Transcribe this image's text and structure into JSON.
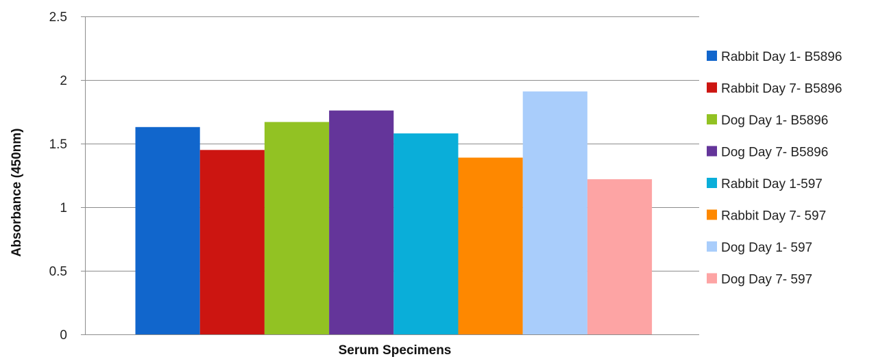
{
  "chart_data": {
    "type": "bar",
    "title": "",
    "xlabel": "Serum Specimens",
    "ylabel": "Absorbance (450nm)",
    "ylim": [
      0,
      2.5
    ],
    "yticks": [
      "0",
      "0.5",
      "1",
      "1.5",
      "2",
      "2.5"
    ],
    "ytick_values": [
      0,
      0.5,
      1,
      1.5,
      2,
      2.5
    ],
    "grid": true,
    "legend_position": "right",
    "categories": [
      "Serum Specimens"
    ],
    "series": [
      {
        "name": "Rabbit Day 1- B5896",
        "color": "#1166cc",
        "values": [
          1.63
        ]
      },
      {
        "name": "Rabbit Day 7- B5896",
        "color": "#cc1511",
        "values": [
          1.45
        ]
      },
      {
        "name": "Dog Day 1- B5896",
        "color": "#92c223",
        "values": [
          1.67
        ]
      },
      {
        "name": "Dog Day 7- B5896",
        "color": "#64359a",
        "values": [
          1.76
        ]
      },
      {
        "name": "Rabbit Day 1-597",
        "color": "#0aaed9",
        "values": [
          1.58
        ]
      },
      {
        "name": "Rabbit Day 7- 597",
        "color": "#fe8800",
        "values": [
          1.39
        ]
      },
      {
        "name": "Dog Day 1- 597",
        "color": "#a9cdfb",
        "values": [
          1.91
        ]
      },
      {
        "name": "Dog Day 7- 597",
        "color": "#fda4a4",
        "values": [
          1.22
        ]
      }
    ]
  },
  "colors": {
    "grid": "#8c8c8c",
    "axis": "#8c8c8c",
    "background": "#ffffff"
  }
}
